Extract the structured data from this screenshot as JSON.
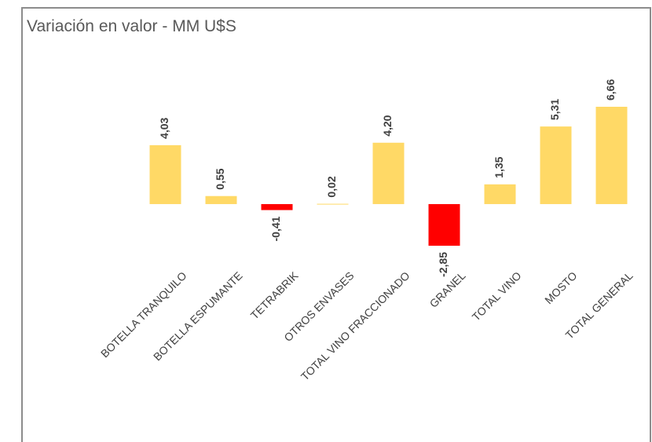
{
  "chart_data": {
    "type": "bar",
    "title": "Variación en valor - MM U$S",
    "categories": [
      "BOTELLA TRANQUILO",
      "BOTELLA ESPUMANTE",
      "TETRABRIK",
      "OTROS ENVASES",
      "TOTAL VINO FRACCIONADO",
      "GRANEL",
      "TOTAL VINO",
      "MOSTO",
      "TOTAL GENERAL"
    ],
    "values": [
      4.03,
      0.55,
      -0.41,
      0.02,
      4.2,
      -2.85,
      1.35,
      5.31,
      6.66
    ],
    "value_labels": [
      "4,03",
      "0,55",
      "-0,41",
      "0,02",
      "4,20",
      "-2,85",
      "1,35",
      "5,31",
      "6,66"
    ],
    "color": "#ffd966",
    "negative_color": "#ff0000"
  }
}
